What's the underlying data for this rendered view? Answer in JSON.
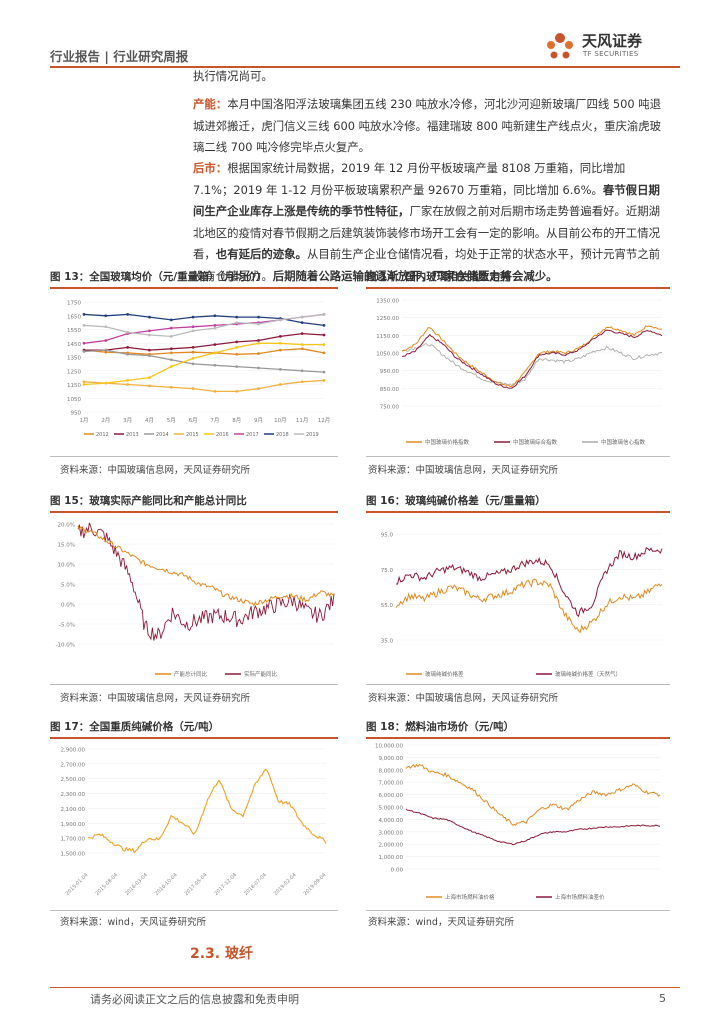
{
  "header": {
    "breadcrumb": "行业报告 | 行业研究周报"
  },
  "logo": {
    "name": "天风证券",
    "sub": "TF SECURITIES"
  },
  "text": {
    "p1": "执行情况尚可。",
    "p2_label": "产能：",
    "p2_body": "本月中国洛阳浮法玻璃集团五线 230 吨放水冷修，河北沙河迎新玻璃厂四线 500 吨退城进郊搬迁，虎门信义三线 600 吨放水冷修。福建瑞玻 800 吨新建生产线点火，重庆渝虎玻璃二线 700 吨冷修完毕点火复产。",
    "p3_label": "后市：",
    "p3_body1": "根据国家统计局数据，2019 年 12 月份平板玻璃产量 8108 万重箱，同比增加 7.1%；2019 年 1-12 月份平板玻璃累积产量 92670 万重箱，同比增加 6.6%。",
    "p3_hl1": "春节假日期间生产企业库存上涨是传统的季节性特征，",
    "p3_body2": "厂家在放假之前对后期市场走势普遍看好。近期湖北地区的疫情对春节假期之后建筑装饰装修市场开工会有一定的影响。从目前公布的开工情况看，",
    "p3_hl2": "也有延后的迹象。",
    "p3_body3": "从目前生产企业仓储情况看，均处于正常的状态水平，预计元宵节之前没有仓储压力。",
    "p3_hl3": "后期随着公路运输的逐渐放开，厂家仓储压力将会减少。"
  },
  "figures": {
    "f13": {
      "title": "图 13：全国玻璃均价（元/重量箱）（月均价）",
      "source": "资料来源：中国玻璃信息网，天风证券研究所"
    },
    "f14": {
      "title": "图 14：国内玻璃相关指数走势",
      "source": "资料来源：中国玻璃信息网，天风证券研究所"
    },
    "f15": {
      "title": "图 15：玻璃实际产能同比和产能总计同比",
      "source": "资料来源：中国玻璃信息网，天风证券研究所"
    },
    "f16": {
      "title": "图 16：玻璃纯碱价格差（元/重量箱）",
      "source": "资料来源：中国玻璃信息网，天风证券研究所"
    },
    "f17": {
      "title": "图 17：全国重质纯碱价格（元/吨）",
      "source": "资料来源：wind，天风证券研究所"
    },
    "f18": {
      "title": "图 18：燃料油市场价（元/吨）",
      "source": "资料来源：wind，天风证券研究所"
    }
  },
  "section": {
    "title": "2.3. 玻纤"
  },
  "footer": {
    "disclaimer": "请务必阅读正文之后的信息披露和免责申明",
    "page": "5"
  },
  "chart_data": [
    {
      "type": "line",
      "title": "图 13：全国玻璃均价（元/重量箱）（月均价）",
      "categories": [
        "1月",
        "2月",
        "3月",
        "4月",
        "5月",
        "6月",
        "7月",
        "8月",
        "9月",
        "10月",
        "11月",
        "12月"
      ],
      "yticks": [
        "1750",
        "1650",
        "1550",
        "1450",
        "1350",
        "1250",
        "1150",
        "1050",
        "950"
      ],
      "ylim": [
        950,
        1750
      ],
      "legend_position": "bottom",
      "series": [
        {
          "name": "2012",
          "color": "#e08a1e",
          "values": [
            1400,
            1385,
            1380,
            1370,
            1380,
            1385,
            1380,
            1370,
            1375,
            1400,
            1410,
            1380
          ]
        },
        {
          "name": "2013",
          "color": "#8b1a3a",
          "values": [
            1400,
            1400,
            1420,
            1400,
            1410,
            1420,
            1440,
            1460,
            1470,
            1500,
            1520,
            1510
          ]
        },
        {
          "name": "2014",
          "color": "#999999",
          "values": [
            1390,
            1400,
            1370,
            1360,
            1330,
            1300,
            1290,
            1280,
            1270,
            1260,
            1250,
            1240
          ]
        },
        {
          "name": "2015",
          "color": "#f0b040",
          "values": [
            1170,
            1160,
            1150,
            1140,
            1130,
            1120,
            1100,
            1100,
            1120,
            1150,
            1170,
            1180
          ]
        },
        {
          "name": "2016",
          "color": "#f5c518",
          "values": [
            1150,
            1160,
            1180,
            1200,
            1280,
            1340,
            1380,
            1420,
            1450,
            1450,
            1440,
            1440
          ]
        },
        {
          "name": "2017",
          "color": "#c040a0",
          "values": [
            1450,
            1470,
            1520,
            1540,
            1560,
            1570,
            1580,
            1590,
            1600,
            1620,
            1640,
            1660
          ]
        },
        {
          "name": "2018",
          "color": "#1f3f7a",
          "values": [
            1660,
            1650,
            1660,
            1640,
            1620,
            1640,
            1650,
            1640,
            1640,
            1630,
            1600,
            1580
          ]
        },
        {
          "name": "2019",
          "color": "#bbbbbb",
          "values": [
            1580,
            1570,
            1530,
            1510,
            1500,
            1540,
            1560,
            1600,
            1590,
            1620,
            1640,
            1660
          ]
        }
      ]
    },
    {
      "type": "line",
      "title": "图 14：国内玻璃相关指数走势",
      "yticks": [
        "1350.00",
        "1250.00",
        "1150.00",
        "1050.00",
        "950.00",
        "850.00",
        "750.00"
      ],
      "ylim": [
        750,
        1350
      ],
      "legend_position": "bottom",
      "series": [
        {
          "name": "中国玻璃价格指数",
          "color": "#e08a1e"
        },
        {
          "name": "中国玻璃综合指数",
          "color": "#8b1a3a"
        },
        {
          "name": "中国玻璃信心指数",
          "color": "#aaaaaa"
        }
      ]
    },
    {
      "type": "line",
      "title": "图 15：玻璃实际产能同比和产能总计同比",
      "yticks": [
        "20.0%",
        "15.0%",
        "10.0%",
        "5.0%",
        "0.0%",
        "-5.0%",
        "-10.0%"
      ],
      "ylim": [
        -10,
        20
      ],
      "legend_position": "bottom",
      "series": [
        {
          "name": "产能总计同比",
          "color": "#e08a1e"
        },
        {
          "name": "实际产能同比",
          "color": "#8b1a3a"
        }
      ]
    },
    {
      "type": "line",
      "title": "图 16：玻璃纯碱价格差（元/重量箱）",
      "yticks": [
        "95.0",
        "75.0",
        "55.0",
        "35.0"
      ],
      "ylim": [
        35,
        95
      ],
      "legend_position": "bottom",
      "series": [
        {
          "name": "玻璃纯碱价格差",
          "color": "#e08a1e"
        },
        {
          "name": "玻璃纯碱价格差（天然气）",
          "color": "#8b1a3a"
        }
      ]
    },
    {
      "type": "line",
      "title": "图 17：全国重质纯碱价格（元/吨）",
      "yticks": [
        "2,900.00",
        "2,700.00",
        "2,500.00",
        "2,300.00",
        "2,100.00",
        "1,900.00",
        "1,700.00",
        "1,500.00"
      ],
      "ylim": [
        1500,
        2900
      ],
      "series": [
        {
          "name": "",
          "color": "#f0a020"
        }
      ]
    },
    {
      "type": "line",
      "title": "图 18：燃料油市场价（元/吨）",
      "yticks": [
        "10,000.00",
        "9,000.00",
        "8,000.00",
        "7,000.00",
        "6,000.00",
        "5,000.00",
        "4,000.00",
        "3,000.00",
        "2,000.00",
        "1,000.00",
        "0.00"
      ],
      "ylim": [
        0,
        10000
      ],
      "legend_position": "bottom",
      "series": [
        {
          "name": "上海市场燃料油价格",
          "color": "#e08a1e"
        },
        {
          "name": "上海市场燃料油差价",
          "color": "#8b1a3a"
        }
      ]
    }
  ]
}
